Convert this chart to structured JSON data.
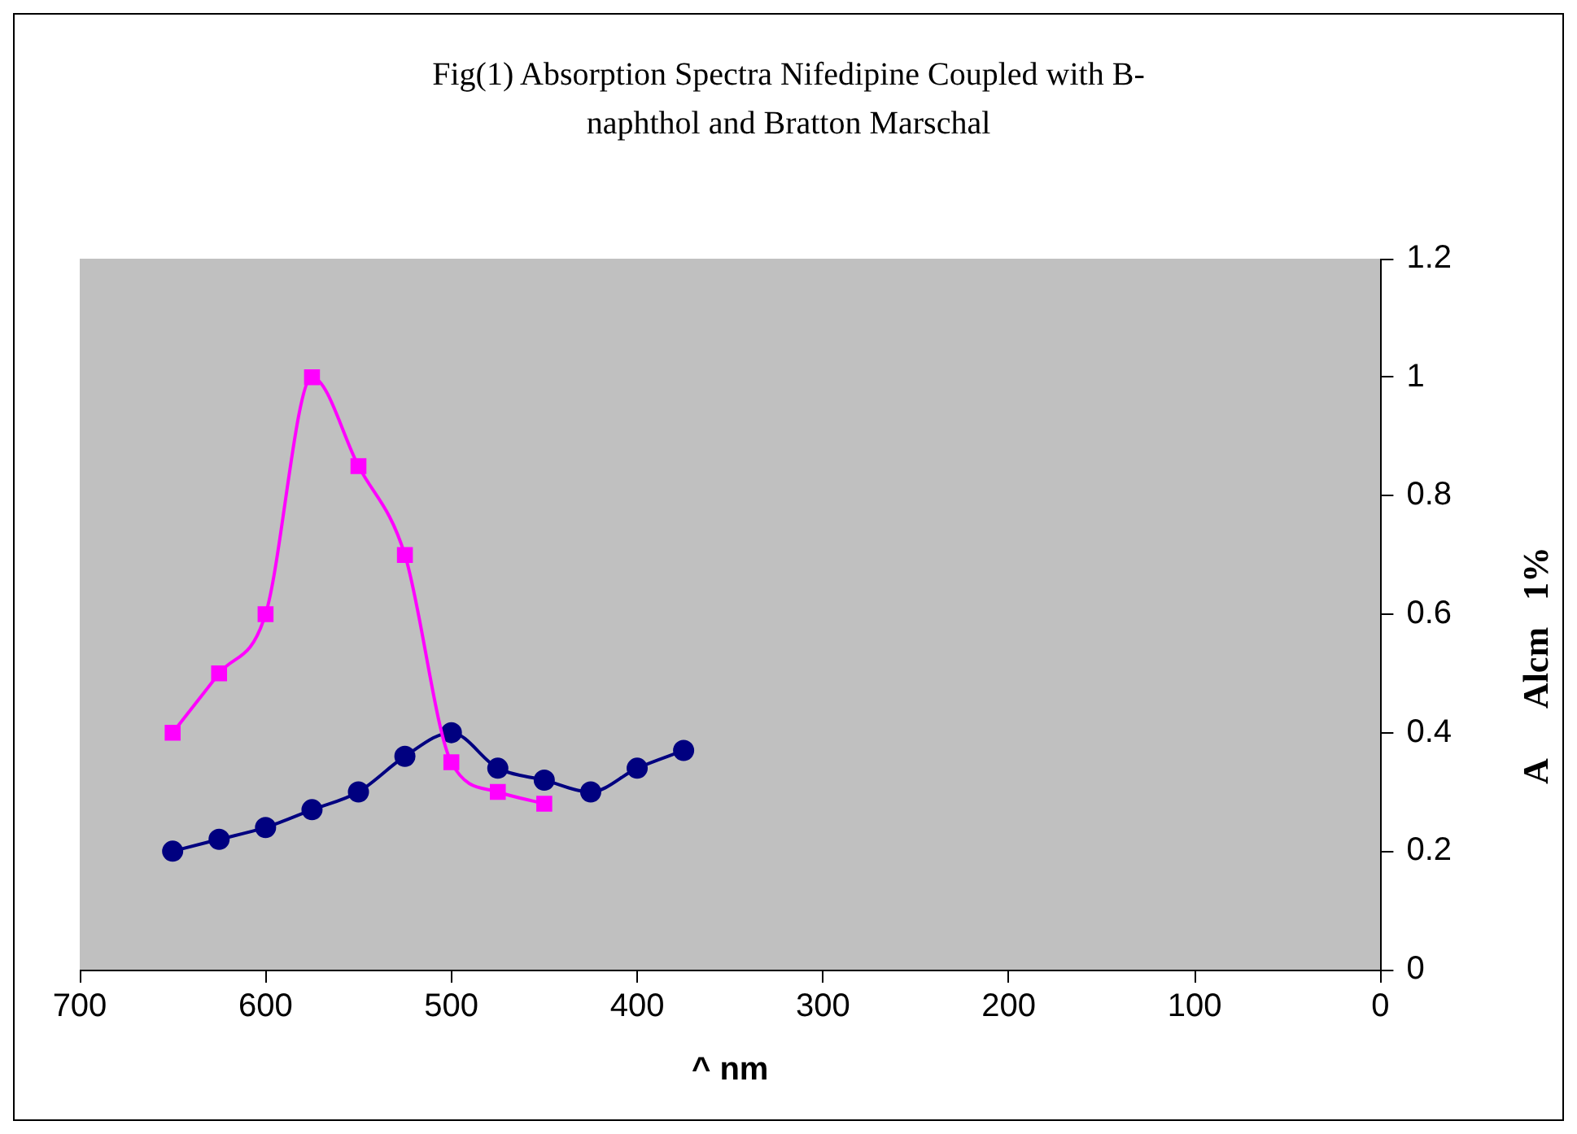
{
  "chart_data": {
    "type": "line",
    "title": "Fig(1) Absorption Spectra Nifedipine Coupled with B-naphthol and Bratton Marschal",
    "xlabel": "^ nm",
    "ylabel": "A      Alcm   1%",
    "x": [
      650,
      625,
      600,
      575,
      550,
      525,
      500,
      475,
      450,
      425,
      400,
      375
    ],
    "series": [
      {
        "color": "#ff00ff",
        "marker": "square",
        "values": [
          0.4,
          0.5,
          0.6,
          1.0,
          0.85,
          0.7,
          0.35,
          0.3,
          0.28,
          null,
          null,
          null
        ]
      },
      {
        "color": "#000080",
        "marker": "circle",
        "values": [
          0.2,
          0.22,
          0.24,
          0.27,
          0.3,
          0.36,
          0.4,
          0.34,
          0.32,
          0.3,
          0.34,
          0.37
        ]
      }
    ],
    "xlim": [
      700,
      0
    ],
    "xticks": [
      700,
      600,
      500,
      400,
      300,
      200,
      100,
      0
    ],
    "ylim": [
      0,
      1.2
    ],
    "yticks": [
      0,
      0.2,
      0.4,
      0.6,
      0.8,
      1,
      1.2
    ],
    "grid": false,
    "legend": false
  }
}
